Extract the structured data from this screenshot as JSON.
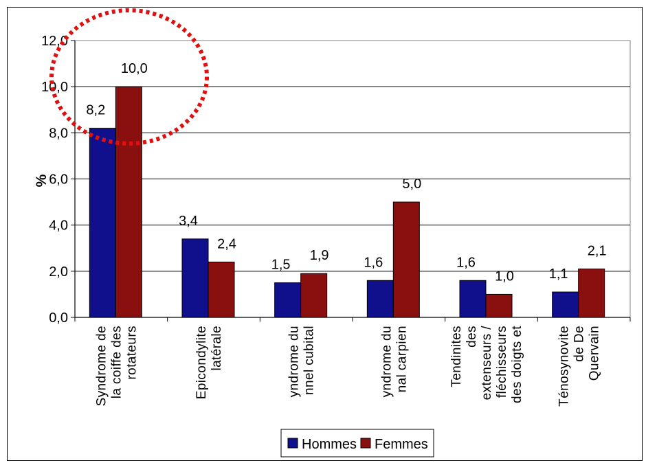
{
  "chart_data": {
    "type": "bar",
    "ylabel": "%",
    "ylim": [
      0,
      12
    ],
    "yticks": [
      "0,0",
      "2,0",
      "4,0",
      "6,0",
      "8,0",
      "10,0",
      "12,0"
    ],
    "grid": "horizontal",
    "legend_position": "bottom",
    "categories": [
      [
        "Syndrome de",
        "la coiffe des",
        "rotateurs"
      ],
      [
        "Epicondylite",
        "latérale"
      ],
      [
        "yndrome du",
        "nnel cubital"
      ],
      [
        "yndrome du",
        "nal carpien"
      ],
      [
        "Tendinites",
        "des",
        "extenseurs /",
        "fléchisseurs",
        "des doigts et"
      ],
      [
        "Ténosynovite",
        "de De",
        "Quervain"
      ]
    ],
    "series": [
      {
        "name": "Hommes",
        "color": "#10108c",
        "values": [
          8.2,
          3.4,
          1.5,
          1.6,
          1.6,
          1.1
        ],
        "labels": [
          "8,2",
          "3,4",
          "1,5",
          "1,6",
          "1,6",
          "1,1"
        ]
      },
      {
        "name": "Femmes",
        "color": "#8a1010",
        "values": [
          10.0,
          2.4,
          1.9,
          5.0,
          1.0,
          2.1
        ],
        "labels": [
          "10,0",
          "2,4",
          "1,9",
          "5,0",
          "1,0",
          "2,1"
        ]
      }
    ],
    "annotation": {
      "shape": "dotted-ellipse",
      "color": "#e01010",
      "highlights": "Syndrome de la coiffe des rotateurs"
    }
  }
}
